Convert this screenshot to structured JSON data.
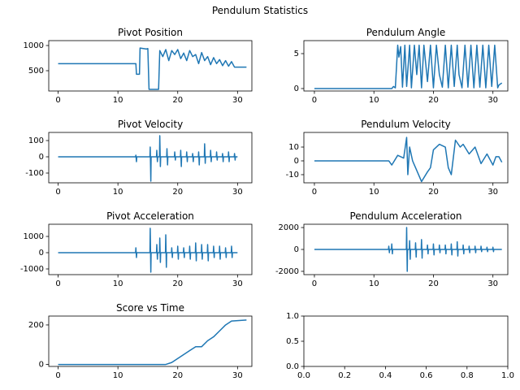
{
  "title": "Pendulum Statistics",
  "chart_data": [
    {
      "type": "line",
      "title": "Pivot Position",
      "color": "#1f77b4",
      "xlim": [
        -1.57,
        32.4
      ],
      "xticks": [
        0,
        10,
        20,
        30
      ],
      "ylim": [
        97,
        1097
      ],
      "yticks": [
        500,
        1000
      ],
      "x": [
        0,
        13,
        13.1,
        13.6,
        13.7,
        14.8,
        15.0,
        15.2,
        16.8,
        17.0,
        17.5,
        18,
        18.5,
        19,
        19.5,
        20,
        20.5,
        21,
        21.5,
        22,
        22.5,
        23,
        23.5,
        24,
        24.5,
        25,
        25.5,
        26,
        26.5,
        27,
        27.5,
        28,
        28.5,
        29,
        29.5,
        30,
        31.5
      ],
      "values": [
        640,
        640,
        430,
        430,
        950,
        930,
        940,
        130,
        130,
        900,
        780,
        920,
        700,
        900,
        820,
        920,
        740,
        850,
        700,
        900,
        780,
        820,
        640,
        860,
        700,
        780,
        620,
        760,
        640,
        720,
        600,
        700,
        590,
        680,
        570,
        570,
        570
      ]
    },
    {
      "type": "line",
      "title": "Pendulum Angle",
      "color": "#1f77b4",
      "xlim": [
        -1.77,
        32.5
      ],
      "xticks": [
        0,
        10,
        20,
        30
      ],
      "ylim": [
        -0.35,
        6.86
      ],
      "yticks": [
        0,
        5
      ],
      "x": [
        0,
        13,
        13.3,
        13.6,
        14,
        14.2,
        14.5,
        14.8,
        15.2,
        15.5,
        16,
        16.3,
        16.8,
        17.2,
        17.6,
        18,
        18.4,
        19,
        19.5,
        20,
        20.5,
        21,
        21.5,
        22,
        22.5,
        23,
        23.5,
        24,
        24.3,
        24.8,
        25.3,
        25.8,
        26.3,
        26.8,
        27.3,
        27.8,
        28.3,
        28.8,
        29.3,
        29.8,
        30.3,
        30.8,
        31,
        31.5
      ],
      "values": [
        0,
        0,
        0.3,
        0.1,
        6.2,
        4.5,
        6,
        0.2,
        6.2,
        0.3,
        6.2,
        0.1,
        6.2,
        2,
        6.2,
        0.1,
        6.2,
        1,
        6.2,
        0.1,
        6.2,
        2,
        0.2,
        6.2,
        0.1,
        6.2,
        0.3,
        6.2,
        2,
        0.1,
        6.2,
        0.2,
        6.2,
        0.1,
        6.2,
        0.2,
        6.2,
        0.1,
        6.2,
        0.3,
        6.2,
        0.1,
        0.5,
        0.8
      ]
    },
    {
      "type": "line",
      "title": "Pivot Velocity",
      "color": "#1f77b4",
      "xlim": [
        -1.57,
        32.4
      ],
      "xticks": [
        0,
        10,
        20,
        30
      ],
      "ylim": [
        -160,
        150
      ],
      "yticks": [
        -100,
        0,
        100
      ],
      "x": [
        0,
        12.95,
        13,
        13.1,
        13.15,
        15.35,
        15.4,
        15.5,
        15.55,
        16.45,
        16.5,
        16.6,
        16.65,
        16.95,
        17,
        17.1,
        17.15,
        18.15,
        18.2,
        18.3,
        18.35,
        19.45,
        19.5,
        19.6,
        19.65,
        20.45,
        20.5,
        20.6,
        20.65,
        21.45,
        21.5,
        21.6,
        21.65,
        22.45,
        22.5,
        22.6,
        22.65,
        23.45,
        23.5,
        23.6,
        23.65,
        24.45,
        24.5,
        24.6,
        24.65,
        25.45,
        25.5,
        25.6,
        25.65,
        26.45,
        26.5,
        26.6,
        26.65,
        27.45,
        27.5,
        27.6,
        27.65,
        28.45,
        28.5,
        28.6,
        28.65,
        29.45,
        29.5,
        29.6,
        29.65,
        30
      ],
      "values": [
        0,
        0,
        10,
        -30,
        0,
        0,
        60,
        -150,
        0,
        0,
        40,
        -30,
        0,
        0,
        130,
        -60,
        0,
        0,
        50,
        -50,
        0,
        0,
        30,
        -20,
        0,
        0,
        40,
        -60,
        0,
        0,
        30,
        -30,
        0,
        0,
        20,
        -30,
        0,
        0,
        30,
        -50,
        0,
        0,
        80,
        -40,
        0,
        0,
        40,
        -30,
        0,
        0,
        30,
        -20,
        0,
        0,
        20,
        -30,
        0,
        0,
        30,
        -30,
        0,
        0,
        20,
        -20,
        0,
        0
      ]
    },
    {
      "type": "line",
      "title": "Pendulum Velocity",
      "color": "#1f77b4",
      "xlim": [
        -1.77,
        32.5
      ],
      "xticks": [
        0,
        10,
        20,
        30
      ],
      "ylim": [
        -15.9,
        20.6
      ],
      "yticks": [
        -10,
        0,
        10
      ],
      "x": [
        0,
        12.5,
        13,
        14,
        15,
        15.5,
        15.7,
        16,
        16.5,
        17,
        18,
        19,
        19.5,
        20,
        21,
        22,
        22.5,
        23,
        23.7,
        24.5,
        25,
        26,
        27,
        28,
        29,
        30,
        30.5,
        31,
        31.5
      ],
      "values": [
        0,
        0,
        -3,
        4,
        2,
        17,
        -10,
        10,
        0,
        -5,
        -15,
        -8,
        -5,
        8,
        12,
        10,
        -5,
        -10,
        15,
        10,
        12,
        5,
        10,
        -2,
        5,
        -3,
        3,
        3,
        -1
      ]
    },
    {
      "type": "line",
      "title": "Pivot Acceleration",
      "color": "#1f77b4",
      "xlim": [
        -1.57,
        32.4
      ],
      "xticks": [
        0,
        10,
        20,
        30
      ],
      "ylim": [
        -1350,
        1750
      ],
      "yticks": [
        -1000,
        0,
        1000
      ],
      "x": [
        0,
        12.95,
        13,
        13.1,
        13.15,
        15.35,
        15.4,
        15.5,
        15.55,
        16.45,
        16.5,
        16.6,
        16.65,
        16.95,
        17,
        17.1,
        17.15,
        17.95,
        18,
        18.1,
        18.15,
        18.95,
        19,
        19.1,
        19.15,
        19.95,
        20,
        20.1,
        20.15,
        20.95,
        21,
        21.1,
        21.15,
        21.95,
        22,
        22.1,
        22.15,
        22.95,
        23,
        23.1,
        23.15,
        23.95,
        24,
        24.1,
        24.15,
        24.95,
        25,
        25.1,
        25.15,
        25.95,
        26,
        26.1,
        26.15,
        26.95,
        27,
        27.1,
        27.15,
        27.95,
        28,
        28.1,
        28.15,
        28.95,
        29,
        29.1,
        29.15,
        30
      ],
      "values": [
        0,
        0,
        300,
        -300,
        0,
        0,
        1500,
        -1200,
        0,
        0,
        500,
        -400,
        0,
        0,
        900,
        -600,
        0,
        0,
        1100,
        -900,
        0,
        0,
        300,
        -300,
        0,
        0,
        400,
        -400,
        0,
        0,
        300,
        -300,
        0,
        0,
        400,
        -400,
        0,
        0,
        600,
        -500,
        0,
        0,
        500,
        -400,
        0,
        0,
        500,
        -500,
        0,
        0,
        400,
        -300,
        0,
        0,
        400,
        -400,
        0,
        0,
        300,
        -300,
        0,
        0,
        400,
        -300,
        0,
        0
      ]
    },
    {
      "type": "line",
      "title": "Pendulum Acceleration",
      "color": "#1f77b4",
      "xlim": [
        -1.77,
        32.5
      ],
      "xticks": [
        0,
        10,
        20,
        30
      ],
      "ylim": [
        -2300,
        2300
      ],
      "yticks": [
        -2000,
        0,
        2000
      ],
      "x": [
        0,
        12.45,
        12.5,
        12.6,
        12.65,
        12.95,
        13,
        13.1,
        13.15,
        15.45,
        15.5,
        15.6,
        15.65,
        15.95,
        16,
        16.1,
        16.15,
        16.95,
        17,
        17.1,
        17.15,
        17.95,
        18,
        18.1,
        18.15,
        18.95,
        19,
        19.1,
        19.15,
        19.95,
        20,
        20.1,
        20.15,
        20.95,
        21,
        21.1,
        21.15,
        21.95,
        22,
        22.1,
        22.15,
        22.95,
        23,
        23.1,
        23.15,
        23.95,
        24,
        24.1,
        24.15,
        24.95,
        25,
        25.1,
        25.15,
        25.95,
        26,
        26.1,
        26.15,
        26.95,
        27,
        27.1,
        27.15,
        27.95,
        28,
        28.1,
        28.15,
        28.95,
        29,
        29.1,
        29.15,
        29.95,
        30,
        30.1,
        30.15,
        31.5
      ],
      "values": [
        0,
        0,
        300,
        -300,
        0,
        0,
        500,
        -400,
        0,
        0,
        2000,
        -2000,
        0,
        0,
        800,
        -900,
        0,
        0,
        600,
        -700,
        0,
        0,
        900,
        -800,
        0,
        0,
        400,
        -400,
        0,
        0,
        500,
        -500,
        0,
        0,
        400,
        -300,
        0,
        0,
        400,
        -400,
        0,
        0,
        500,
        -500,
        0,
        0,
        700,
        -600,
        0,
        0,
        400,
        -400,
        0,
        0,
        300,
        -300,
        0,
        0,
        300,
        -300,
        0,
        0,
        300,
        -200,
        0,
        0,
        200,
        -200,
        0,
        0,
        200,
        -200,
        0,
        0
      ]
    },
    {
      "type": "line",
      "title": "Score vs Time",
      "color": "#1f77b4",
      "xlim": [
        -1.57,
        32.4
      ],
      "xticks": [
        0,
        10,
        20,
        30
      ],
      "ylim": [
        -10,
        245
      ],
      "yticks": [
        0,
        200
      ],
      "x": [
        0,
        18,
        19,
        20,
        21,
        22,
        23,
        24,
        25,
        26,
        27,
        28,
        29,
        31.5
      ],
      "values": [
        0,
        0,
        10,
        30,
        50,
        70,
        90,
        90,
        120,
        140,
        170,
        200,
        220,
        225
      ]
    },
    {
      "type": "empty",
      "xlim": [
        0,
        1
      ],
      "ylim": [
        0,
        1
      ],
      "xticks": [
        {
          "value": 0,
          "label": "0.0"
        },
        {
          "value": 0.2,
          "label": "0.2"
        },
        {
          "value": 0.4,
          "label": "0.4"
        },
        {
          "value": 0.6,
          "label": "0.6"
        },
        {
          "value": 0.8,
          "label": "0.8"
        },
        {
          "value": 1,
          "label": "1.0"
        }
      ],
      "yticks": [
        {
          "value": 0,
          "label": "0.0"
        },
        {
          "value": 0.5,
          "label": "0.5"
        },
        {
          "value": 1,
          "label": "1.0"
        }
      ]
    }
  ]
}
